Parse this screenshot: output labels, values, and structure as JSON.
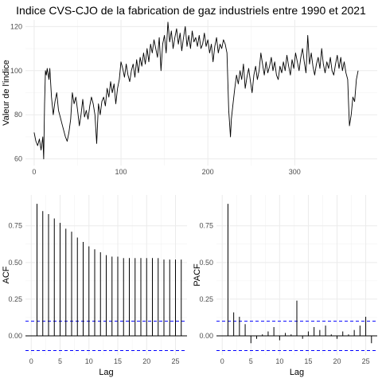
{
  "title": "Indice CVS-CJO de la fabrication de gaz industriels entre 1990 et 2021",
  "chart_data": [
    {
      "type": "line",
      "ylabel": "Valeur de l'indice",
      "xlabel": "",
      "xlim": [
        -10,
        395
      ],
      "ylim": [
        57,
        123
      ],
      "x_ticks": [
        0,
        100,
        200,
        300
      ],
      "y_ticks": [
        60,
        80,
        100,
        120
      ],
      "grid": true,
      "series": [
        {
          "points": [
            [
              0,
              72
            ],
            [
              2,
              68
            ],
            [
              4,
              66
            ],
            [
              6,
              69
            ],
            [
              8,
              64
            ],
            [
              10,
              70
            ],
            [
              11,
              60
            ],
            [
              12,
              85
            ],
            [
              13,
              100
            ],
            [
              14,
              98
            ],
            [
              15,
              101
            ],
            [
              17,
              96
            ],
            [
              18,
              101
            ],
            [
              20,
              88
            ],
            [
              22,
              80
            ],
            [
              24,
              86
            ],
            [
              26,
              90
            ],
            [
              28,
              82
            ],
            [
              30,
              79
            ],
            [
              32,
              76
            ],
            [
              34,
              73
            ],
            [
              36,
              70
            ],
            [
              38,
              68
            ],
            [
              40,
              72
            ],
            [
              42,
              78
            ],
            [
              44,
              90
            ],
            [
              46,
              85
            ],
            [
              48,
              88
            ],
            [
              50,
              82
            ],
            [
              52,
              75
            ],
            [
              54,
              80
            ],
            [
              56,
              87
            ],
            [
              58,
              79
            ],
            [
              60,
              82
            ],
            [
              62,
              78
            ],
            [
              64,
              84
            ],
            [
              66,
              88
            ],
            [
              68,
              85
            ],
            [
              70,
              80
            ],
            [
              72,
              67
            ],
            [
              74,
              85
            ],
            [
              76,
              80
            ],
            [
              78,
              86
            ],
            [
              80,
              88
            ],
            [
              82,
              84
            ],
            [
              84,
              92
            ],
            [
              86,
              88
            ],
            [
              88,
              95
            ],
            [
              90,
              90
            ],
            [
              92,
              94
            ],
            [
              94,
              85
            ],
            [
              96,
              92
            ],
            [
              98,
              96
            ],
            [
              100,
              104
            ],
            [
              102,
              101
            ],
            [
              104,
              97
            ],
            [
              106,
              103
            ],
            [
              108,
              98
            ],
            [
              110,
              95
            ],
            [
              112,
              100
            ],
            [
              114,
              103
            ],
            [
              116,
              97
            ],
            [
              118,
              105
            ],
            [
              120,
              99
            ],
            [
              122,
              106
            ],
            [
              124,
              102
            ],
            [
              126,
              108
            ],
            [
              128,
              103
            ],
            [
              130,
              110
            ],
            [
              132,
              104
            ],
            [
              134,
              112
            ],
            [
              136,
              108
            ],
            [
              138,
              114
            ],
            [
              140,
              110
            ],
            [
              142,
              106
            ],
            [
              144,
              115
            ],
            [
              146,
              100
            ],
            [
              148,
              112
            ],
            [
              150,
              116
            ],
            [
              152,
              108
            ],
            [
              154,
              122
            ],
            [
              156,
              113
            ],
            [
              158,
              118
            ],
            [
              160,
              110
            ],
            [
              162,
              115
            ],
            [
              164,
              119
            ],
            [
              166,
              112
            ],
            [
              168,
              117
            ],
            [
              170,
              109
            ],
            [
              172,
              115
            ],
            [
              174,
              120
            ],
            [
              176,
              111
            ],
            [
              178,
              116
            ],
            [
              180,
              110
            ],
            [
              182,
              118
            ],
            [
              184,
              113
            ],
            [
              186,
              115
            ],
            [
              188,
              111
            ],
            [
              190,
              116
            ],
            [
              192,
              110
            ],
            [
              194,
              112
            ],
            [
              196,
              117
            ],
            [
              198,
              111
            ],
            [
              200,
              114
            ],
            [
              202,
              108
            ],
            [
              204,
              112
            ],
            [
              206,
              104
            ],
            [
              208,
              111
            ],
            [
              210,
              115
            ],
            [
              212,
              108
            ],
            [
              214,
              112
            ],
            [
              216,
              110
            ],
            [
              218,
              114
            ],
            [
              220,
              112
            ],
            [
              222,
              108
            ],
            [
              223,
              95
            ],
            [
              224,
              82
            ],
            [
              225,
              76
            ],
            [
              226,
              70
            ],
            [
              227,
              78
            ],
            [
              229,
              85
            ],
            [
              231,
              92
            ],
            [
              233,
              98
            ],
            [
              235,
              94
            ],
            [
              237,
              100
            ],
            [
              239,
              96
            ],
            [
              241,
              103
            ],
            [
              243,
              92
            ],
            [
              245,
              97
            ],
            [
              247,
              101
            ],
            [
              249,
              95
            ],
            [
              251,
              90
            ],
            [
              253,
              98
            ],
            [
              255,
              102
            ],
            [
              257,
              96
            ],
            [
              259,
              100
            ],
            [
              261,
              108
            ],
            [
              263,
              103
            ],
            [
              265,
              98
            ],
            [
              267,
              104
            ],
            [
              269,
              99
            ],
            [
              271,
              102
            ],
            [
              273,
              106
            ],
            [
              275,
              100
            ],
            [
              277,
              104
            ],
            [
              279,
              98
            ],
            [
              281,
              96
            ],
            [
              283,
              102
            ],
            [
              285,
              99
            ],
            [
              287,
              104
            ],
            [
              289,
              100
            ],
            [
              291,
              107
            ],
            [
              293,
              102
            ],
            [
              295,
              98
            ],
            [
              297,
              105
            ],
            [
              299,
              101
            ],
            [
              301,
              108
            ],
            [
              303,
              104
            ],
            [
              305,
              100
            ],
            [
              307,
              106
            ],
            [
              309,
              110
            ],
            [
              311,
              104
            ],
            [
              313,
              99
            ],
            [
              315,
              116
            ],
            [
              317,
              103
            ],
            [
              319,
              108
            ],
            [
              321,
              102
            ],
            [
              323,
              98
            ],
            [
              325,
              103
            ],
            [
              327,
              106
            ],
            [
              329,
              101
            ],
            [
              331,
              110
            ],
            [
              333,
              103
            ],
            [
              335,
              99
            ],
            [
              337,
              104
            ],
            [
              339,
              101
            ],
            [
              341,
              106
            ],
            [
              343,
              100
            ],
            [
              345,
              98
            ],
            [
              347,
              103
            ],
            [
              349,
              107
            ],
            [
              351,
              101
            ],
            [
              353,
              106
            ],
            [
              355,
              100
            ],
            [
              357,
              104
            ],
            [
              359,
              99
            ],
            [
              361,
              96
            ],
            [
              362,
              85
            ],
            [
              363,
              75
            ],
            [
              365,
              80
            ],
            [
              367,
              88
            ],
            [
              369,
              86
            ],
            [
              371,
              96
            ],
            [
              373,
              100
            ]
          ]
        }
      ]
    },
    {
      "type": "bar",
      "ylabel": "ACF",
      "xlabel": "Lag",
      "xlim": [
        -1,
        27
      ],
      "ylim": [
        -0.13,
        0.96
      ],
      "x_ticks": [
        0,
        5,
        10,
        15,
        20,
        25
      ],
      "y_ticks": [
        0.0,
        0.25,
        0.5,
        0.75
      ],
      "y_tick_labels": [
        "0.00",
        "0.25",
        "0.50",
        "0.75"
      ],
      "confidence_bound": 0.1,
      "grid": true,
      "lags": [
        1,
        2,
        3,
        4,
        5,
        6,
        7,
        8,
        9,
        10,
        11,
        12,
        13,
        14,
        15,
        16,
        17,
        18,
        19,
        20,
        21,
        22,
        23,
        24,
        25,
        26
      ],
      "values": [
        0.9,
        0.85,
        0.83,
        0.8,
        0.77,
        0.73,
        0.71,
        0.67,
        0.64,
        0.61,
        0.59,
        0.57,
        0.55,
        0.54,
        0.54,
        0.53,
        0.53,
        0.53,
        0.53,
        0.53,
        0.53,
        0.53,
        0.52,
        0.52,
        0.52,
        0.52
      ]
    },
    {
      "type": "bar",
      "ylabel": "PACF",
      "xlabel": "Lag",
      "xlim": [
        -1,
        27
      ],
      "ylim": [
        -0.13,
        0.96
      ],
      "x_ticks": [
        0,
        5,
        10,
        15,
        20,
        25
      ],
      "y_ticks": [
        0.0,
        0.25,
        0.5,
        0.75
      ],
      "y_tick_labels": [
        "0.00",
        "0.25",
        "0.50",
        "0.75"
      ],
      "confidence_bound": 0.1,
      "grid": true,
      "lags": [
        1,
        2,
        3,
        4,
        5,
        6,
        7,
        8,
        9,
        10,
        11,
        12,
        13,
        14,
        15,
        16,
        17,
        18,
        19,
        20,
        21,
        22,
        23,
        24,
        25,
        26
      ],
      "values": [
        0.9,
        0.16,
        0.13,
        0.08,
        -0.05,
        -0.02,
        0.01,
        0.03,
        0.06,
        -0.03,
        0.02,
        0.01,
        0.24,
        -0.02,
        0.03,
        0.06,
        0.04,
        0.07,
        0.01,
        -0.02,
        0.03,
        0.01,
        0.04,
        0.07,
        0.13,
        -0.05
      ]
    }
  ]
}
